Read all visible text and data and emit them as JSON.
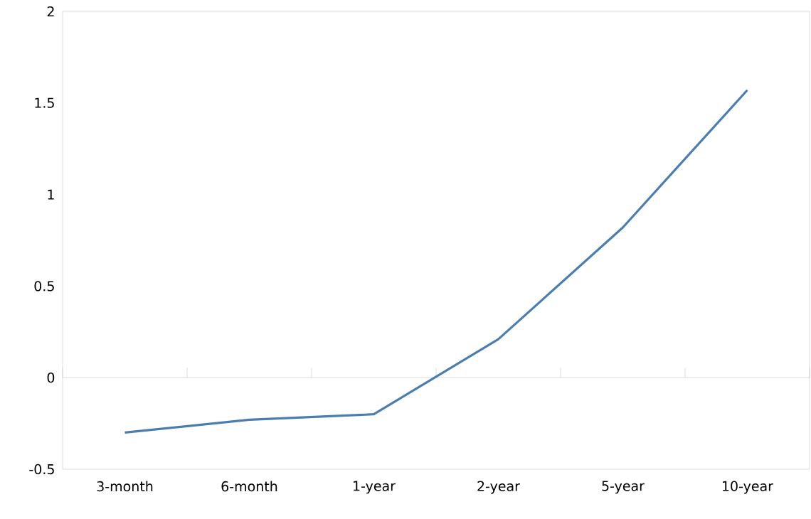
{
  "chart_data": {
    "type": "line",
    "categories": [
      "3-month",
      "6-month",
      "1-year",
      "2-year",
      "5-year",
      "10-year"
    ],
    "series": [
      {
        "color": "#4a7eb0",
        "values": [
          -0.3,
          -0.23,
          -0.2,
          0.21,
          0.82,
          1.57
        ]
      }
    ],
    "ylim": [
      -0.5,
      2
    ],
    "yticks": [
      -0.5,
      0,
      0.5,
      1,
      1.5,
      2
    ],
    "marker": "none",
    "line_style": "solid"
  }
}
